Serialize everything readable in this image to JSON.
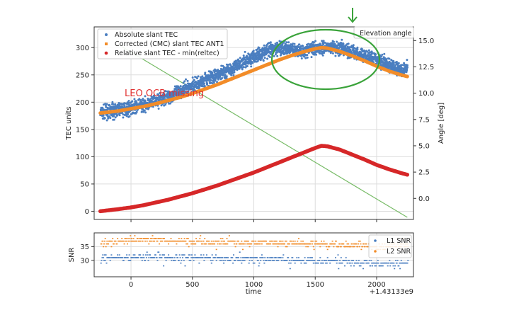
{
  "chart_data": [
    {
      "type": "line",
      "name": "main-panel",
      "xlim": [
        -300,
        2300
      ],
      "ylim": [
        -15,
        338
      ],
      "y2lim": [
        -2,
        16.3
      ],
      "xticks": [
        0,
        500,
        1000,
        1500,
        2000
      ],
      "yticks": [
        0,
        50,
        100,
        150,
        200,
        250,
        300
      ],
      "y2ticks": [
        0.0,
        2.5,
        5.0,
        7.5,
        10.0,
        12.5,
        15.0
      ],
      "y2tick_labels": [
        "0.0",
        "2.5",
        "5.0",
        "7.5",
        "10.0",
        "12.5",
        "15.0"
      ],
      "ylabel": "TEC units",
      "y2label": "Angle [deg]",
      "grid": true,
      "legend_position": "upper-left",
      "series": [
        {
          "name": "Absolute slant TEC",
          "style": "scatter",
          "color": "#4a7ec0",
          "x": [
            -250,
            -100,
            0,
            100,
            200,
            300,
            400,
            500,
            600,
            700,
            800,
            900,
            1000,
            1100,
            1200,
            1300,
            1400,
            1500,
            1550,
            1600,
            1700,
            1800,
            1900,
            2000,
            2100,
            2200,
            2250
          ],
          "y": [
            180,
            186,
            190,
            195,
            202,
            210,
            220,
            230,
            240,
            250,
            260,
            272,
            283,
            292,
            300,
            297,
            293,
            300,
            300,
            302,
            298,
            292,
            287,
            278,
            268,
            258,
            262
          ],
          "noise": 9
        },
        {
          "name": "Corrected (CMC) slant TEC ANT1",
          "style": "line",
          "color": "#f28c28",
          "x": [
            -250,
            -100,
            0,
            100,
            200,
            300,
            400,
            500,
            600,
            700,
            800,
            900,
            1000,
            1100,
            1200,
            1300,
            1400,
            1500,
            1550,
            1600,
            1700,
            1800,
            1900,
            2000,
            2100,
            2200,
            2250
          ],
          "y": [
            180,
            184,
            188,
            192,
            197,
            203,
            209,
            216,
            224,
            232,
            241,
            250,
            259,
            268,
            277,
            285,
            292,
            298,
            300,
            299,
            293,
            285,
            276,
            266,
            257,
            250,
            247
          ]
        },
        {
          "name": "Relative slant TEC - min(reltec)",
          "style": "line",
          "color": "#d62728",
          "x": [
            -250,
            -100,
            0,
            100,
            200,
            300,
            400,
            500,
            600,
            700,
            800,
            900,
            1000,
            1100,
            1200,
            1300,
            1400,
            1500,
            1550,
            1600,
            1700,
            1800,
            1900,
            2000,
            2100,
            2200,
            2250
          ],
          "y": [
            0,
            4,
            7,
            11,
            16,
            21,
            27,
            33,
            40,
            47,
            55,
            63,
            71,
            80,
            89,
            98,
            107,
            116,
            120,
            119,
            113,
            104,
            95,
            85,
            77,
            70,
            67
          ]
        },
        {
          "name": "Elevation angle",
          "style": "line",
          "axis": "right",
          "color": "#77bb66",
          "x": [
            -100,
            2250
          ],
          "y": [
            14.6,
            -1.8
          ]
        }
      ],
      "annotations": [
        {
          "text": "LEO OCB missing",
          "x": -60,
          "y": 220,
          "color": "#e03030"
        }
      ]
    },
    {
      "type": "scatter",
      "name": "snr-panel",
      "xlim": [
        -300,
        2300
      ],
      "ylim": [
        24,
        40
      ],
      "xticks": [
        0,
        500,
        1000,
        1500,
        2000
      ],
      "xtick_labels": [
        "0",
        "500",
        "1000",
        "1500",
        "2000"
      ],
      "yticks": [
        30,
        35
      ],
      "ylabel": "SNR",
      "xlabel": "time",
      "offset_label": "+1.43133e9",
      "grid": true,
      "legend_position": "upper-right",
      "series": [
        {
          "name": "L1 SNR",
          "color": "#4a7ec0",
          "x": [
            -250,
            0,
            500,
            1000,
            1500,
            2000,
            2250
          ],
          "y": [
            31,
            31,
            31,
            30.5,
            30,
            29,
            29
          ]
        },
        {
          "name": "L2 SNR",
          "color": "#f28c28",
          "x": [
            -250,
            0,
            500,
            1000,
            1500,
            2000,
            2250
          ],
          "y": [
            36,
            37.5,
            37,
            36.5,
            36,
            35,
            35.5
          ]
        }
      ]
    }
  ],
  "annotation_arrow": {
    "color": "#3aa33a"
  },
  "highlight": {
    "color": "#3aa33a"
  }
}
